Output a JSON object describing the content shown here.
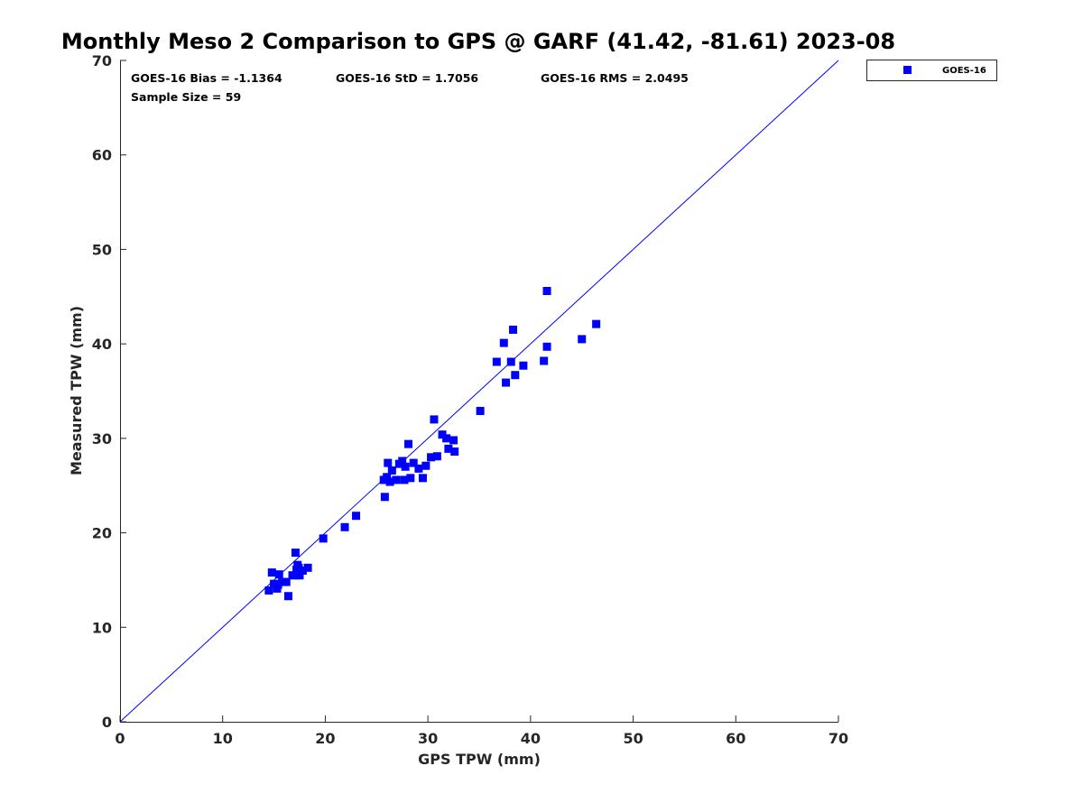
{
  "chart_data": {
    "type": "scatter",
    "title": "Monthly Meso 2 Comparison to GPS @ GARF (41.42, -81.61) 2023-08",
    "xlabel": "GPS TPW (mm)",
    "ylabel": "Measured TPW (mm)",
    "xlim": [
      0,
      70
    ],
    "ylim": [
      0,
      70
    ],
    "xticks": [
      "0",
      "10",
      "20",
      "30",
      "40",
      "50",
      "60",
      "70"
    ],
    "yticks": [
      "0",
      "10",
      "20",
      "30",
      "40",
      "50",
      "60",
      "70"
    ],
    "grid": false,
    "legend_position": "outside-top-right",
    "reference_line": {
      "x": [
        0,
        70
      ],
      "y": [
        0,
        70
      ],
      "color": "#0000ff"
    },
    "stats": {
      "bias": "GOES-16 Bias = -1.1364",
      "std": "GOES-16 StD = 1.7056",
      "rms": "GOES-16 RMS = 2.0495",
      "sample_size": "Sample Size = 59"
    },
    "series": [
      {
        "name": "GOES-16",
        "color": "#0000ff",
        "marker": "square",
        "x": [
          14.5,
          14.8,
          15.0,
          15.3,
          15.5,
          15.4,
          15.8,
          16.2,
          16.4,
          16.8,
          17.1,
          17.3,
          17.2,
          17.4,
          17.5,
          17.8,
          18.3,
          17.1,
          19.8,
          21.9,
          23.0,
          25.7,
          25.8,
          26.0,
          26.1,
          26.3,
          26.5,
          26.9,
          27.2,
          27.5,
          27.8,
          27.7,
          28.1,
          28.3,
          28.6,
          29.1,
          29.5,
          29.8,
          30.3,
          30.6,
          30.9,
          31.4,
          31.8,
          32.0,
          32.5,
          32.6,
          35.1,
          36.7,
          37.4,
          37.6,
          38.1,
          38.3,
          38.5,
          39.3,
          41.3,
          41.6,
          41.6,
          45.0,
          46.4
        ],
        "y": [
          13.9,
          15.8,
          14.6,
          14.1,
          15.6,
          14.5,
          14.8,
          14.8,
          13.3,
          15.5,
          15.5,
          16.6,
          16.1,
          16.3,
          15.5,
          16.0,
          16.3,
          17.9,
          19.4,
          20.6,
          21.8,
          25.6,
          23.8,
          25.9,
          27.4,
          25.4,
          26.6,
          25.6,
          27.3,
          27.6,
          27.0,
          25.6,
          29.4,
          25.8,
          27.4,
          26.8,
          25.8,
          27.1,
          28.0,
          32.0,
          28.1,
          30.4,
          30.0,
          28.9,
          29.8,
          28.6,
          32.9,
          38.1,
          40.1,
          35.9,
          38.1,
          41.5,
          36.7,
          37.7,
          38.2,
          45.6,
          39.7,
          40.5,
          42.1
        ]
      }
    ]
  }
}
